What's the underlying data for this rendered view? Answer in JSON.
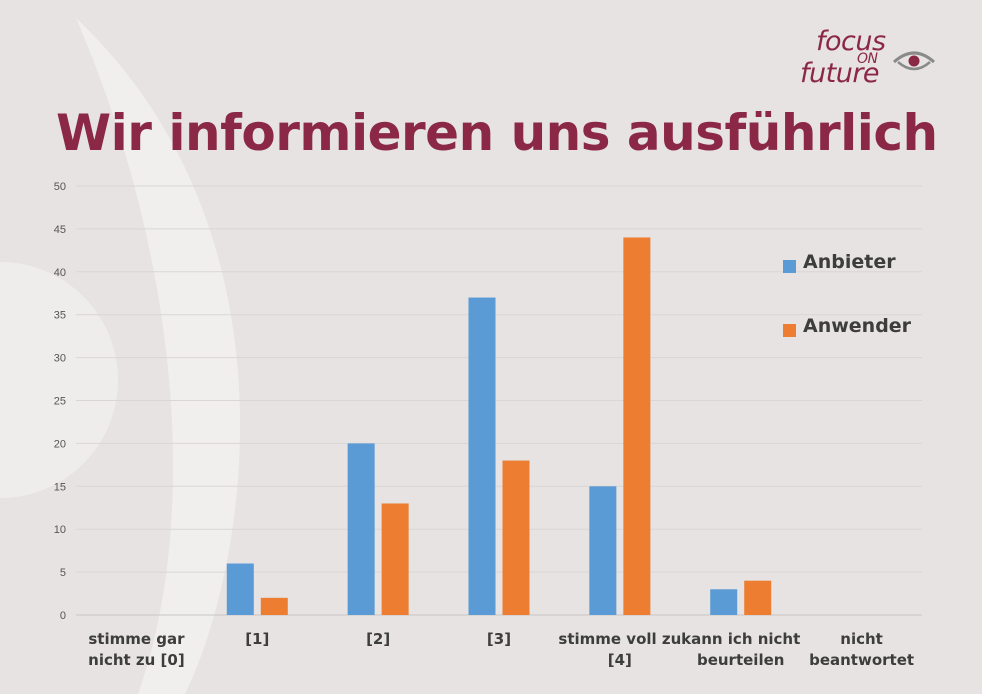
{
  "title": "Wir informieren uns ausführlich",
  "logo": {
    "line1": "focus",
    "line2": "ON",
    "line3": "future",
    "icon": "eye-icon",
    "color": "#8b2846"
  },
  "chart_data": {
    "type": "bar",
    "categories": [
      [
        "stimme gar",
        "nicht zu [0]"
      ],
      [
        "[1]"
      ],
      [
        "[2]"
      ],
      [
        "[3]"
      ],
      [
        "stimme voll zu",
        "[4]"
      ],
      [
        "kann ich nicht",
        "beurteilen"
      ],
      [
        "nicht",
        "beantwortet"
      ]
    ],
    "series": [
      {
        "name": "Anbieter",
        "color": "#5b9bd5",
        "values": [
          0,
          6,
          20,
          37,
          15,
          3,
          0
        ]
      },
      {
        "name": "Anwender",
        "color": "#ed7d31",
        "values": [
          0,
          2,
          13,
          18,
          44,
          4,
          0
        ]
      }
    ],
    "yticks": [
      "0",
      "5",
      "10",
      "15",
      "20",
      "25",
      "30",
      "35",
      "40",
      "45",
      "50"
    ],
    "ylim": [
      0,
      50
    ],
    "grid": true,
    "legend_position": "right"
  }
}
